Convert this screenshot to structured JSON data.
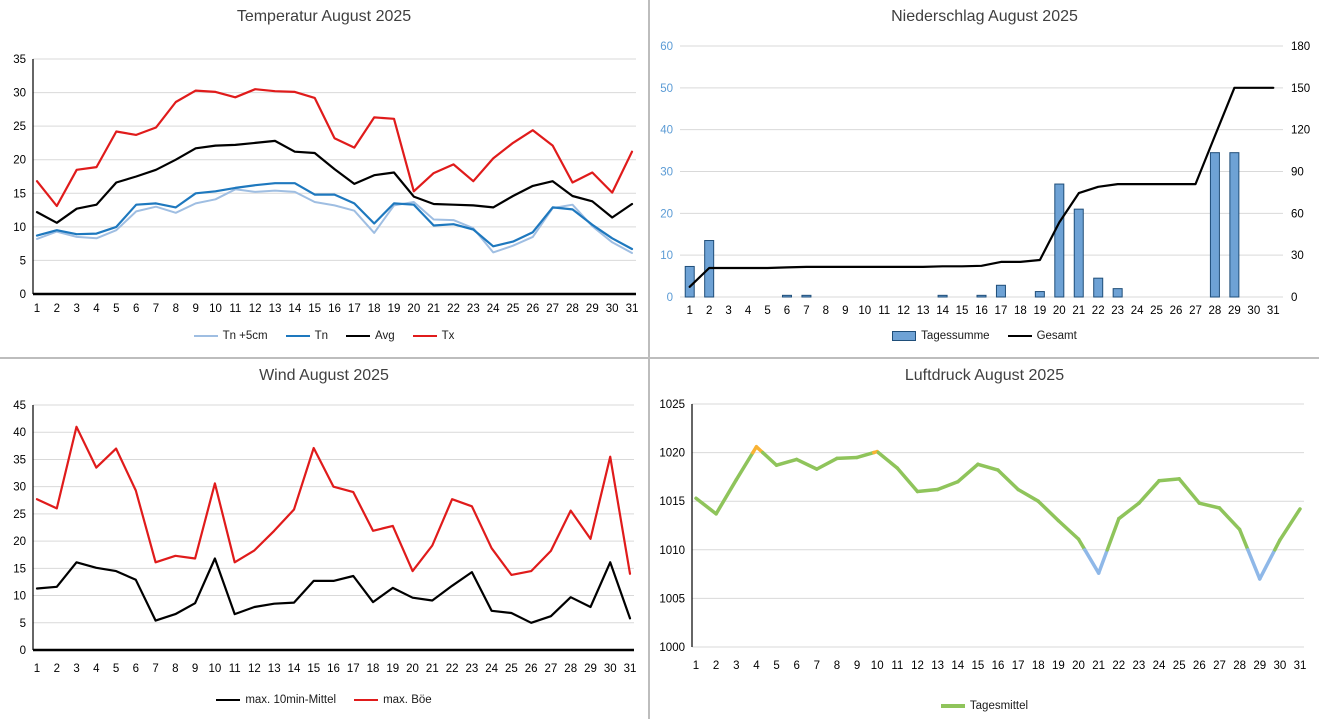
{
  "page": {
    "background": "#FFFFFF",
    "divider_color": "#BDBDBD",
    "title_color": "#3F3F3F",
    "gridline_color": "#D9D9D9"
  },
  "chart_data": [
    {
      "id": "temperatur",
      "type": "line",
      "title": "Temperatur August 2025",
      "xlabel": "",
      "ylabel": "",
      "categories": [
        1,
        2,
        3,
        4,
        5,
        6,
        7,
        8,
        9,
        10,
        11,
        12,
        13,
        14,
        15,
        16,
        17,
        18,
        19,
        20,
        21,
        22,
        23,
        24,
        25,
        26,
        27,
        28,
        29,
        30,
        31
      ],
      "ylim": [
        0,
        35
      ],
      "ytick_step": 5,
      "grid": true,
      "legend_position": "bottom",
      "series": [
        {
          "name": "Tn +5cm",
          "color": "#9FBEE2",
          "width": 2,
          "values": [
            8.2,
            9.3,
            8.5,
            8.3,
            9.5,
            12.3,
            13.0,
            12.1,
            13.5,
            14.1,
            15.6,
            15.2,
            15.4,
            15.2,
            13.7,
            13.2,
            12.4,
            9.1,
            13.2,
            13.7,
            11.1,
            11.0,
            9.8,
            6.2,
            7.2,
            8.5,
            12.8,
            13.3,
            10.1,
            7.7,
            6.1
          ]
        },
        {
          "name": "Tn",
          "color": "#1E78BE",
          "width": 2.2,
          "values": [
            8.7,
            9.5,
            8.9,
            9.0,
            10.0,
            13.3,
            13.5,
            12.9,
            15.0,
            15.3,
            15.8,
            16.2,
            16.5,
            16.5,
            14.8,
            14.8,
            13.5,
            10.5,
            13.5,
            13.3,
            10.2,
            10.4,
            9.6,
            7.1,
            7.8,
            9.2,
            12.9,
            12.6,
            10.3,
            8.3,
            6.7
          ]
        },
        {
          "name": "Avg",
          "color": "#000000",
          "width": 2.2,
          "values": [
            12.2,
            10.6,
            12.7,
            13.3,
            16.6,
            17.5,
            18.5,
            20.0,
            21.7,
            22.1,
            22.2,
            22.5,
            22.8,
            21.2,
            21.0,
            18.6,
            16.4,
            17.7,
            18.1,
            14.5,
            13.4,
            13.3,
            13.2,
            12.9,
            14.6,
            16.1,
            16.8,
            14.6,
            13.8,
            11.4,
            13.4
          ]
        },
        {
          "name": "Tx",
          "color": "#E01B1B",
          "width": 2.2,
          "values": [
            16.8,
            13.1,
            18.5,
            18.9,
            24.2,
            23.7,
            24.8,
            28.6,
            30.3,
            30.1,
            29.3,
            30.5,
            30.2,
            30.1,
            29.2,
            23.2,
            21.8,
            26.3,
            26.1,
            15.3,
            18.0,
            19.3,
            16.8,
            20.2,
            22.5,
            24.4,
            22.1,
            16.6,
            18.1,
            15.1,
            21.2
          ]
        }
      ]
    },
    {
      "id": "niederschlag",
      "type": "bar-line",
      "title": "Niederschlag August 2025",
      "xlabel": "",
      "ylabel": "",
      "categories": [
        1,
        2,
        3,
        4,
        5,
        6,
        7,
        8,
        9,
        10,
        11,
        12,
        13,
        14,
        15,
        16,
        17,
        18,
        19,
        20,
        21,
        22,
        23,
        24,
        25,
        26,
        27,
        28,
        29,
        30,
        31
      ],
      "left_axis": {
        "ylim": [
          0,
          60
        ],
        "step": 10,
        "label_color": "#5B9BD5"
      },
      "right_axis": {
        "ylim": [
          0,
          180
        ],
        "step": 30,
        "label_color": "#000000"
      },
      "grid": true,
      "legend_position": "bottom",
      "series": [
        {
          "name": "Tagessumme",
          "type": "bar",
          "axis": "left",
          "fill": "#6EA2D5",
          "stroke": "#1F4E79",
          "values": [
            7.3,
            13.5,
            0,
            0,
            0,
            0.4,
            0.4,
            0,
            0,
            0,
            0,
            0,
            0,
            0.4,
            0,
            0.4,
            2.8,
            0,
            1.3,
            27,
            21,
            4.5,
            2,
            0,
            0,
            0,
            0,
            34.5,
            34.5,
            0,
            0
          ]
        },
        {
          "name": "Gesamt",
          "type": "line",
          "axis": "right",
          "color": "#000000",
          "width": 2.2,
          "values": [
            7.3,
            20.8,
            20.8,
            20.8,
            20.8,
            21.2,
            21.6,
            21.6,
            21.6,
            21.6,
            21.6,
            21.6,
            21.6,
            22.0,
            22.0,
            22.4,
            25.2,
            25.2,
            26.5,
            53.5,
            74.5,
            79.0,
            81.0,
            81.0,
            81.0,
            81.0,
            81.0,
            115.5,
            150.0,
            150.0,
            150.0
          ]
        }
      ]
    },
    {
      "id": "wind",
      "type": "line",
      "title": "Wind August 2025",
      "xlabel": "",
      "ylabel": "",
      "categories": [
        1,
        2,
        3,
        4,
        5,
        6,
        7,
        8,
        9,
        10,
        11,
        12,
        13,
        14,
        15,
        16,
        17,
        18,
        19,
        20,
        21,
        22,
        23,
        24,
        25,
        26,
        27,
        28,
        29,
        30,
        31
      ],
      "ylim": [
        0,
        45
      ],
      "ytick_step": 5,
      "grid": true,
      "legend_position": "bottom",
      "series": [
        {
          "name": "max. 10min-Mittel",
          "color": "#000000",
          "width": 2.2,
          "values": [
            11.3,
            11.6,
            16.1,
            15.1,
            14.5,
            12.9,
            5.4,
            6.6,
            8.6,
            16.8,
            6.6,
            7.9,
            8.5,
            8.7,
            12.7,
            12.7,
            13.6,
            8.8,
            11.4,
            9.6,
            9.1,
            11.8,
            14.3,
            7.2,
            6.8,
            5.0,
            6.2,
            9.7,
            7.9,
            16.1,
            5.8
          ]
        },
        {
          "name": "max. Böe",
          "color": "#E01B1B",
          "width": 2.2,
          "values": [
            27.7,
            26.0,
            41.0,
            33.5,
            37.0,
            29.3,
            16.1,
            17.3,
            16.8,
            30.6,
            16.1,
            18.3,
            21.9,
            25.8,
            37.1,
            30.0,
            29.0,
            21.9,
            22.8,
            14.5,
            19.2,
            27.7,
            26.4,
            18.7,
            13.8,
            14.5,
            18.2,
            25.6,
            20.4,
            35.5,
            14.0
          ]
        }
      ]
    },
    {
      "id": "luftdruck",
      "type": "line",
      "title": "Luftdruck August 2025",
      "xlabel": "",
      "ylabel": "",
      "categories": [
        1,
        2,
        3,
        4,
        5,
        6,
        7,
        8,
        9,
        10,
        11,
        12,
        13,
        14,
        15,
        16,
        17,
        18,
        19,
        20,
        21,
        22,
        23,
        24,
        25,
        26,
        27,
        28,
        29,
        30,
        31
      ],
      "ylim": [
        1000,
        1025
      ],
      "ytick_step": 5,
      "grid": true,
      "legend_position": "bottom",
      "series": [
        {
          "name": "Tagesmittel",
          "color": "#8FC45B",
          "width": 3.5,
          "color_zones": {
            "high": {
              "threshold": 1020,
              "color": "#F9B233"
            },
            "low": {
              "threshold": 1010,
              "color": "#8FB8E8"
            }
          },
          "values": [
            1015.3,
            1013.7,
            1017.2,
            1020.6,
            1018.7,
            1019.3,
            1018.3,
            1019.4,
            1019.5,
            1020.1,
            1018.4,
            1016.0,
            1016.2,
            1017.0,
            1018.8,
            1018.2,
            1016.2,
            1015.0,
            1013.0,
            1011.1,
            1007.6,
            1013.2,
            1014.8,
            1017.1,
            1017.3,
            1014.8,
            1014.3,
            1012.1,
            1007.0,
            1011.0,
            1014.2
          ]
        }
      ]
    }
  ]
}
